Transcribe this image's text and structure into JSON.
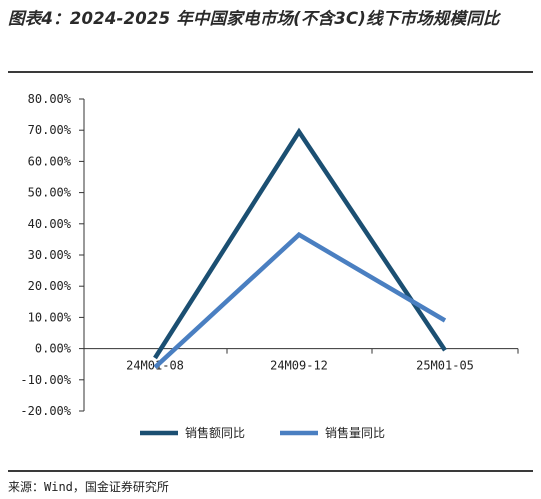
{
  "title": "图表4：2024-2025 年中国家电市场(不含3C)线下市场规模同比",
  "source": "来源：Wind，国金证券研究所",
  "chart_data": {
    "type": "line",
    "categories": [
      "24M01-08",
      "24M09-12",
      "25M01-05"
    ],
    "series": [
      {
        "name": "销售额同比",
        "values": [
          -3.0,
          69.5,
          -0.5
        ],
        "color": "#1b4f72"
      },
      {
        "name": "销售量同比",
        "values": [
          -6.0,
          36.5,
          9.0
        ],
        "color": "#4a7fc1"
      }
    ],
    "ylim": [
      -20,
      80
    ],
    "yticks": [
      80,
      70,
      60,
      50,
      40,
      30,
      20,
      10,
      0,
      -10,
      -20
    ],
    "ytick_labels": [
      "80.00%",
      "70.00%",
      "60.00%",
      "50.00%",
      "40.00%",
      "30.00%",
      "20.00%",
      "10.00%",
      "0.00%",
      "-10.00%",
      "-20.00%"
    ],
    "legend_position": "bottom",
    "grid": false
  }
}
